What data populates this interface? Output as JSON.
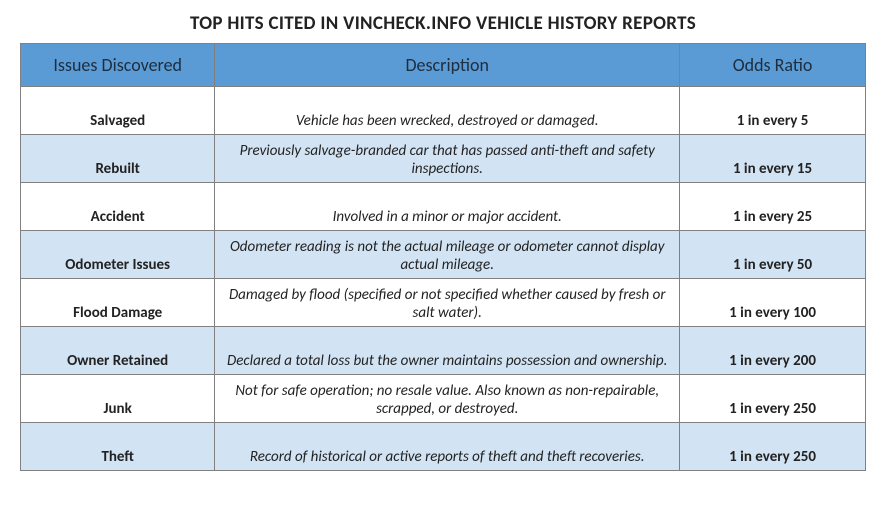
{
  "title": "TOP HITS CITED IN VINCHECK.INFO VEHICLE HISTORY REPORTS",
  "colors": {
    "header_bg": "#5b9bd5",
    "row_odd_bg": "#ffffff",
    "row_even_bg": "#d2e3f3",
    "border": "#808080",
    "text": "#222222"
  },
  "headers": {
    "issue": "Issues Discovered",
    "desc": "Description",
    "odds": "Odds Ratio"
  },
  "rows": [
    {
      "issue": "Salvaged",
      "desc": "Vehicle has been wrecked, destroyed or damaged.",
      "odds": "1 in every 5"
    },
    {
      "issue": "Rebuilt",
      "desc": "Previously salvage-branded car that has passed anti-theft and safety inspections.",
      "odds": "1 in every 15"
    },
    {
      "issue": "Accident",
      "desc": "Involved in a minor or major accident.",
      "odds": "1 in every 25"
    },
    {
      "issue": "Odometer Issues",
      "desc": "Odometer reading is not the actual mileage or odometer cannot display actual mileage.",
      "odds": "1 in every 50"
    },
    {
      "issue": "Flood Damage",
      "desc": "Damaged by flood (specified or not specified whether caused by fresh or salt water).",
      "odds": "1 in every 100"
    },
    {
      "issue": "Owner Retained",
      "desc": "Declared a total loss but the owner maintains possession and ownership.",
      "odds": "1 in every 200"
    },
    {
      "issue": "Junk",
      "desc": "Not for safe operation; no resale value. Also known as non-repairable, scrapped, or destroyed.",
      "odds": "1 in every 250"
    },
    {
      "issue": "Theft",
      "desc": "Record of historical or active reports of theft and theft recoveries.",
      "odds": "1 in every 250"
    }
  ]
}
